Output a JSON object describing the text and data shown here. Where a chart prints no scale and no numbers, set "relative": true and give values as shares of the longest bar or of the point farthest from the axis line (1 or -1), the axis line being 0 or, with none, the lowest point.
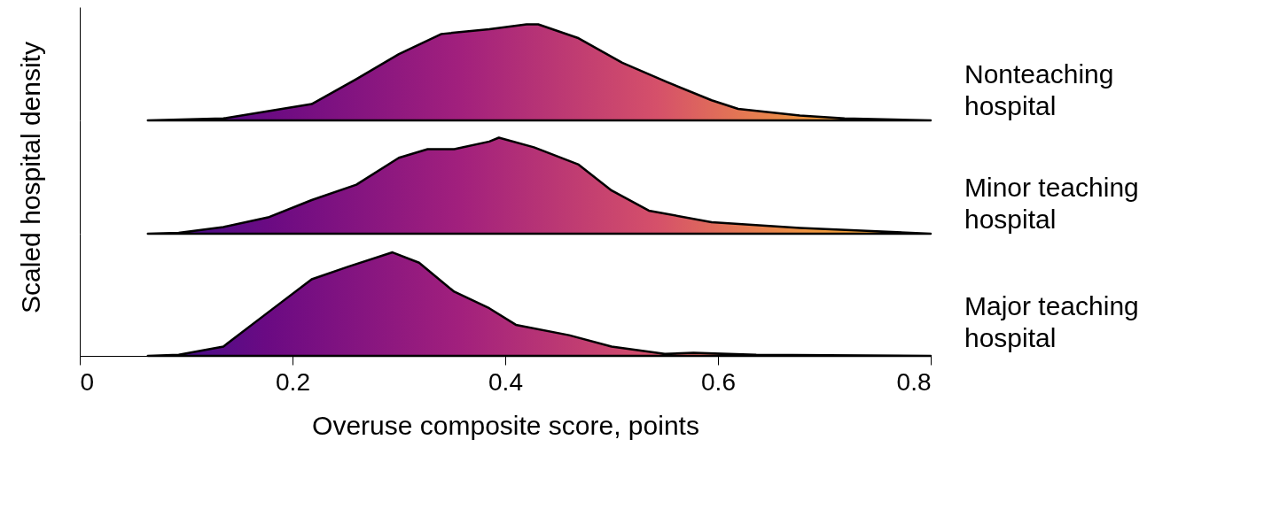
{
  "chart_data": [
    {
      "type": "area",
      "relative": true,
      "xlim": [
        0,
        0.8
      ],
      "tick_labels": false,
      "line_style": "solid",
      "series": [
        {
          "name": "Nonteaching hospital",
          "color": "#000000",
          "x": [
            0.064,
            0.135,
            0.218,
            0.26,
            0.3,
            0.34,
            0.385,
            0.42,
            0.431,
            0.468,
            0.51,
            0.552,
            0.594,
            0.619,
            0.677,
            0.719,
            0.8
          ],
          "values": [
            0,
            0.02,
            0.17,
            0.43,
            0.69,
            0.9,
            0.95,
            1.0,
            1.0,
            0.86,
            0.6,
            0.4,
            0.21,
            0.12,
            0.05,
            0.02,
            0
          ]
        }
      ]
    },
    {
      "type": "area",
      "relative": true,
      "xlim": [
        0,
        0.8
      ],
      "tick_labels": false,
      "ylabel": "Scaled hospital density",
      "line_style": "solid",
      "series": [
        {
          "name": "Minor teaching hospital",
          "color": "#000000",
          "x": [
            0.064,
            0.093,
            0.135,
            0.177,
            0.218,
            0.26,
            0.3,
            0.327,
            0.352,
            0.385,
            0.394,
            0.427,
            0.469,
            0.5,
            0.535,
            0.594,
            0.677,
            0.8
          ],
          "values": [
            0,
            0.01,
            0.07,
            0.17,
            0.35,
            0.51,
            0.79,
            0.88,
            0.88,
            0.96,
            1.0,
            0.9,
            0.72,
            0.45,
            0.24,
            0.12,
            0.06,
            0
          ]
        }
      ]
    },
    {
      "type": "area",
      "relative": true,
      "xlim": [
        0,
        0.8
      ],
      "xticks": [
        0,
        0.2,
        0.4,
        0.6,
        0.8
      ],
      "tick_labels": "x",
      "xlabel": "Overuse composite score, points",
      "line_style": "solid",
      "series": [
        {
          "name": "Major teaching hospital",
          "color": "#000000",
          "x": [
            0.064,
            0.093,
            0.135,
            0.177,
            0.218,
            0.252,
            0.294,
            0.319,
            0.352,
            0.385,
            0.41,
            0.46,
            0.5,
            0.55,
            0.577,
            0.636,
            0.8
          ],
          "values": [
            0,
            0.01,
            0.09,
            0.42,
            0.74,
            0.86,
            1.0,
            0.9,
            0.62,
            0.46,
            0.3,
            0.2,
            0.09,
            0.02,
            0.03,
            0.01,
            0
          ]
        }
      ]
    }
  ]
}
